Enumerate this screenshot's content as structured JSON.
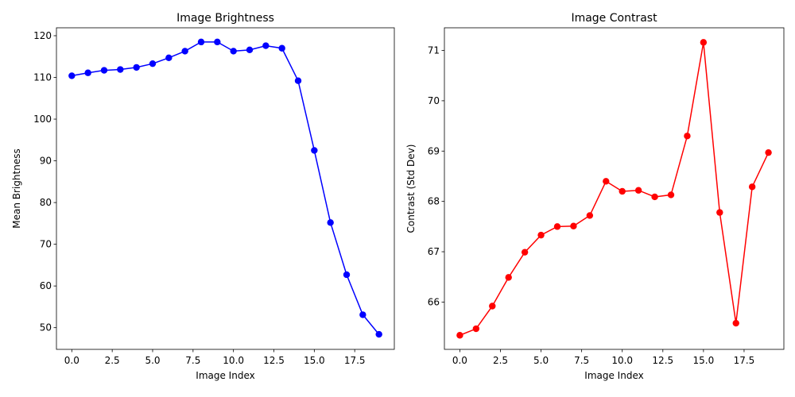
{
  "chart_data": [
    {
      "type": "line",
      "title": "Image Brightness",
      "xlabel": "Image Index",
      "ylabel": "Mean Brightness",
      "xlim": [
        -0.95,
        19.95
      ],
      "ylim": [
        44.8,
        121.9
      ],
      "xticks": [
        0,
        2.5,
        5,
        7.5,
        10,
        12.5,
        15,
        17.5
      ],
      "xtick_labels": [
        "0.0",
        "2.5",
        "5.0",
        "7.5",
        "10.0",
        "12.5",
        "15.0",
        "17.5"
      ],
      "yticks": [
        50,
        60,
        70,
        80,
        90,
        100,
        110,
        120
      ],
      "ytick_labels": [
        "50",
        "60",
        "70",
        "80",
        "90",
        "100",
        "110",
        "120"
      ],
      "grid": false,
      "series": [
        {
          "color": "#0000ff",
          "marker": "circle",
          "x": [
            0,
            1,
            2,
            3,
            4,
            5,
            6,
            7,
            8,
            9,
            10,
            11,
            12,
            13,
            14,
            15,
            16,
            17,
            18,
            19
          ],
          "y": [
            110.4,
            111.1,
            111.7,
            111.9,
            112.4,
            113.3,
            114.7,
            116.3,
            118.5,
            118.5,
            116.3,
            116.6,
            117.6,
            117.0,
            109.2,
            92.5,
            75.2,
            62.7,
            53.1,
            48.4
          ]
        }
      ]
    },
    {
      "type": "line",
      "title": "Image Contrast",
      "xlabel": "Image Index",
      "ylabel": "Contrast (Std Dev)",
      "xlim": [
        -0.95,
        19.95
      ],
      "ylim": [
        65.06,
        71.45
      ],
      "xticks": [
        0,
        2.5,
        5,
        7.5,
        10,
        12.5,
        15,
        17.5
      ],
      "xtick_labels": [
        "0.0",
        "2.5",
        "5.0",
        "7.5",
        "10.0",
        "12.5",
        "15.0",
        "17.5"
      ],
      "yticks": [
        66,
        67,
        68,
        69,
        70,
        71
      ],
      "ytick_labels": [
        "66",
        "67",
        "68",
        "69",
        "70",
        "71"
      ],
      "grid": false,
      "series": [
        {
          "color": "#ff0000",
          "marker": "circle",
          "x": [
            0,
            1,
            2,
            3,
            4,
            5,
            6,
            7,
            8,
            9,
            10,
            11,
            12,
            13,
            14,
            15,
            16,
            17,
            18,
            19
          ],
          "y": [
            65.34,
            65.47,
            65.92,
            66.49,
            66.99,
            67.33,
            67.5,
            67.51,
            67.72,
            68.4,
            68.2,
            68.22,
            68.09,
            68.13,
            69.3,
            71.16,
            67.78,
            65.58,
            68.29,
            68.97
          ]
        }
      ]
    }
  ]
}
